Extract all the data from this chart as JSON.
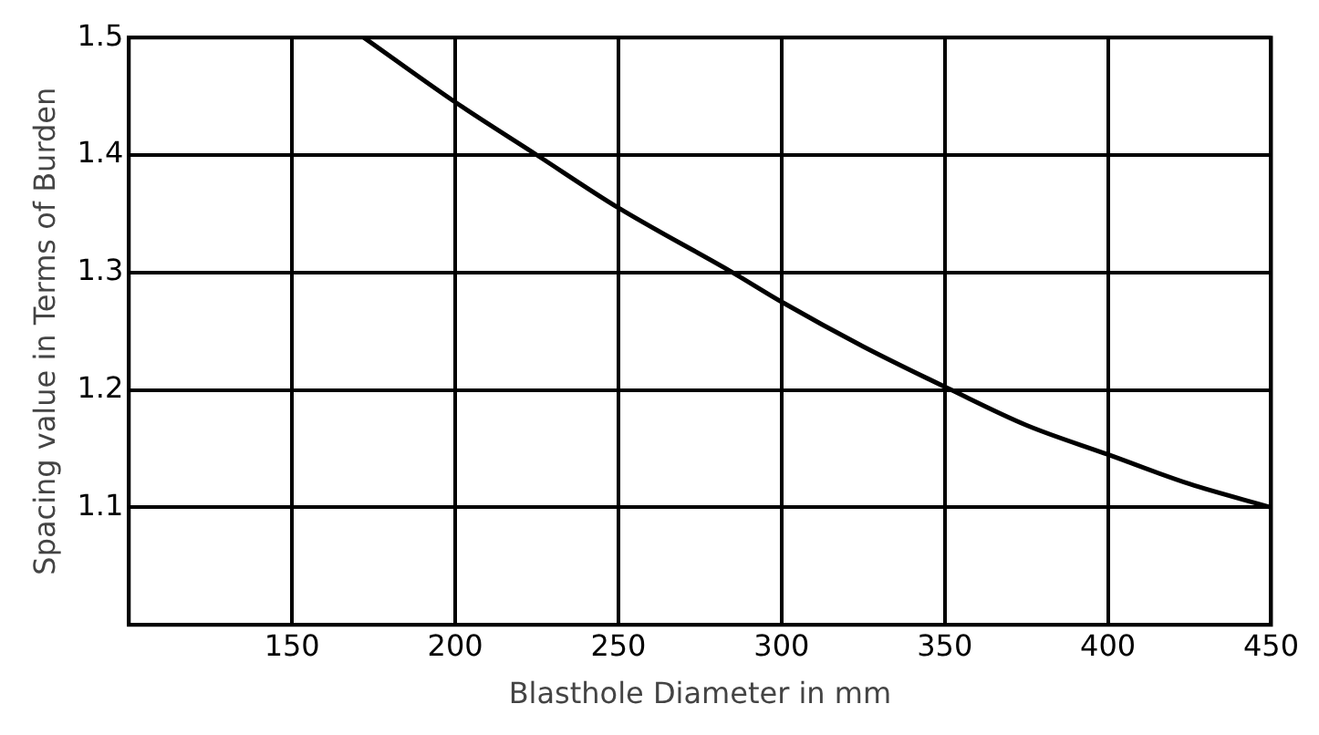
{
  "chart_data": {
    "type": "line",
    "xlabel": "Blasthole Diameter in mm",
    "ylabel": "Spacing value in Terms of Burden",
    "x": [
      172,
      200,
      225,
      250,
      285,
      300,
      325,
      352,
      375,
      400,
      425,
      450
    ],
    "series": [
      {
        "color": "#000000",
        "values": [
          1.5,
          1.445,
          1.4,
          1.355,
          1.3,
          1.275,
          1.237,
          1.2,
          1.17,
          1.145,
          1.12,
          1.1
        ]
      }
    ],
    "xlim": [
      100,
      450
    ],
    "xticks": [
      150,
      200,
      250,
      300,
      350,
      400,
      450
    ],
    "ylim": [
      1,
      1.5
    ],
    "yticks": [
      1.1,
      1.2,
      1.3,
      1.4,
      1.5
    ],
    "grid": true,
    "legend": false,
    "marker": "none",
    "line_style": "solid"
  }
}
